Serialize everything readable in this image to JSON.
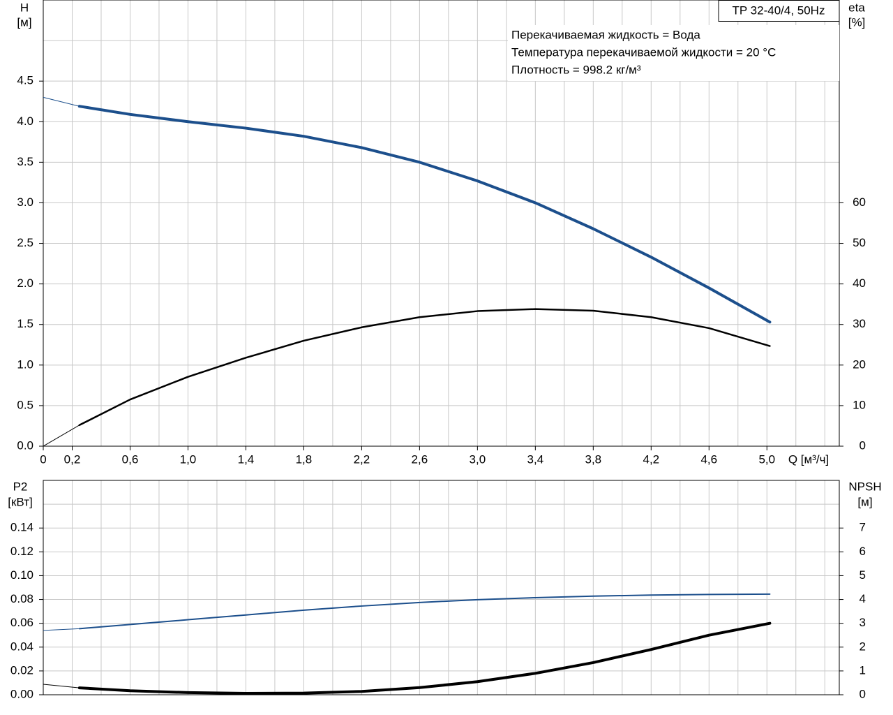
{
  "chart_data": [
    {
      "type": "line",
      "title": "TP 32-40/4, 50Hz",
      "annotations": [
        "Перекачиваемая жидкость = Вода",
        "Температура перекачиваемой жидкости = 20 °C",
        "Плотность = 998.2 кг/м³"
      ],
      "ylabel": "H",
      "yunit": "[м]",
      "y2label": "eta",
      "y2unit": "[%]",
      "xlabel": "Q [м³/ч]",
      "xlim": [
        0,
        5.5
      ],
      "xticks": [
        0,
        {
          "value": 0.2,
          "label": "0,2"
        },
        {
          "value": 0.6,
          "label": "0,6"
        },
        {
          "value": 1.0,
          "label": "1,0"
        },
        {
          "value": 1.4,
          "label": "1,4"
        },
        {
          "value": 1.8,
          "label": "1,8"
        },
        {
          "value": 2.2,
          "label": "2,2"
        },
        {
          "value": 2.6,
          "label": "2,6"
        },
        {
          "value": 3.0,
          "label": "3,0"
        },
        {
          "value": 3.4,
          "label": "3,4"
        },
        {
          "value": 3.8,
          "label": "3,8"
        },
        {
          "value": 4.2,
          "label": "4,2"
        },
        {
          "value": 4.6,
          "label": "4,6"
        },
        {
          "value": 5.0,
          "label": "5,0"
        }
      ],
      "xminor": [
        0.4,
        0.8,
        1.2,
        1.6,
        2.0,
        2.4,
        2.8,
        3.2,
        3.6,
        4.0,
        4.4,
        4.8,
        5.2,
        5.4
      ],
      "ylim": [
        0,
        5.5
      ],
      "yticks": [
        {
          "value": 0,
          "label": "0.0"
        },
        0.5,
        {
          "value": 1,
          "label": "1.0"
        },
        1.5,
        {
          "value": 2,
          "label": "2.0"
        },
        2.5,
        {
          "value": 3,
          "label": "3.0"
        },
        3.5,
        {
          "value": 4,
          "label": "4.0"
        },
        4.5
      ],
      "yminor": [
        5.0
      ],
      "y2lim": [
        0,
        110
      ],
      "y2ticks": [
        0,
        10,
        20,
        30,
        40,
        50,
        60
      ],
      "grid": true,
      "x": [
        0,
        0.25,
        0.6,
        1.0,
        1.4,
        1.8,
        2.2,
        2.6,
        3.0,
        3.4,
        3.8,
        4.2,
        4.6,
        5.02
      ],
      "series": [
        {
          "color": "#1c4f8c",
          "width": 4,
          "values": [
            4.3,
            4.19,
            4.09,
            4.0,
            3.92,
            3.82,
            3.68,
            3.5,
            3.27,
            3.0,
            2.68,
            2.33,
            1.95,
            1.53
          ]
        },
        {
          "color": "#000000",
          "width": 2.5,
          "axis": "y2",
          "values": [
            0,
            5.2,
            11.5,
            17.1,
            21.8,
            26.0,
            29.3,
            31.8,
            33.3,
            33.8,
            33.4,
            31.8,
            29.1,
            24.7
          ]
        }
      ]
    },
    {
      "type": "line",
      "ylabel": "P2",
      "yunit": "[кВт]",
      "y2label": "NPSH",
      "y2unit": "[м]",
      "xlim": [
        0,
        5.5
      ],
      "xminor": [
        0.2,
        0.4,
        0.6,
        0.8,
        1.0,
        1.2,
        1.4,
        1.6,
        1.8,
        2.0,
        2.2,
        2.4,
        2.6,
        2.8,
        3.0,
        3.2,
        3.4,
        3.6,
        3.8,
        4.0,
        4.2,
        4.4,
        4.6,
        4.8,
        5.0,
        5.2,
        5.4
      ],
      "ylim": [
        0,
        0.18
      ],
      "yticks": [
        {
          "value": 0,
          "label": "0.00"
        },
        0.02,
        0.04,
        0.06,
        0.08,
        {
          "value": 0.1,
          "label": "0.10"
        },
        0.12,
        0.14
      ],
      "yminor": [
        0.16
      ],
      "y2lim": [
        0,
        9
      ],
      "y2ticks": [
        0,
        1,
        2,
        3,
        4,
        5,
        6,
        7
      ],
      "grid": true,
      "x": [
        0,
        0.25,
        0.6,
        1.0,
        1.4,
        1.8,
        2.2,
        2.6,
        3.0,
        3.4,
        3.8,
        4.2,
        4.6,
        5.02
      ],
      "series": [
        {
          "color": "#1c4f8c",
          "width": 2,
          "values": [
            0.054,
            0.0555,
            0.059,
            0.063,
            0.067,
            0.071,
            0.0745,
            0.0775,
            0.0798,
            0.0815,
            0.0828,
            0.0837,
            0.0842,
            0.0845
          ]
        },
        {
          "color": "#000000",
          "width": 4,
          "axis": "y2",
          "values": [
            0.44,
            0.29,
            0.17,
            0.09,
            0.06,
            0.07,
            0.14,
            0.3,
            0.55,
            0.9,
            1.35,
            1.9,
            2.5,
            3.0
          ]
        }
      ]
    }
  ]
}
